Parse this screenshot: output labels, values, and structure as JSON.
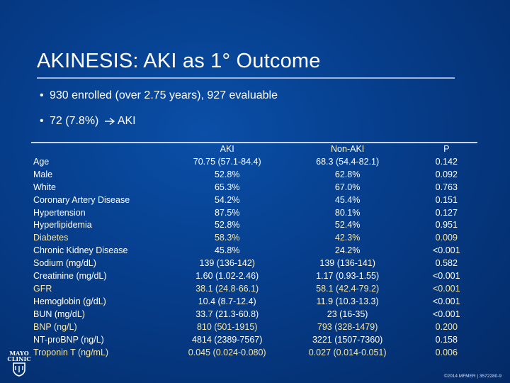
{
  "title": "AKINESIS: AKI as 1° Outcome",
  "bullets": [
    {
      "text_before": "930 enrolled (over 2.75 years), 927 evaluable"
    },
    {
      "text_before": "72 (7.8%)",
      "text_after": "AKI",
      "arrow": "right-arrow-icon"
    }
  ],
  "table": {
    "headers": [
      "",
      "AKI",
      "Non-AKI",
      "P"
    ],
    "rows": [
      {
        "label": "Age",
        "aki": "70.75 (57.1-84.4)",
        "nonaki": "68.3 (54.4-82.1)",
        "p": "0.142",
        "highlight": false
      },
      {
        "label": "Male",
        "aki": "52.8%",
        "nonaki": "62.8%",
        "p": "0.092",
        "highlight": false
      },
      {
        "label": "White",
        "aki": "65.3%",
        "nonaki": "67.0%",
        "p": "0.763",
        "highlight": false
      },
      {
        "label": "Coronary Artery Disease",
        "aki": "54.2%",
        "nonaki": "45.4%",
        "p": "0.151",
        "highlight": false
      },
      {
        "label": "Hypertension",
        "aki": "87.5%",
        "nonaki": "80.1%",
        "p": "0.127",
        "highlight": false
      },
      {
        "label": "Hyperlipidemia",
        "aki": "52.8%",
        "nonaki": "52.4%",
        "p": "0.951",
        "highlight": false
      },
      {
        "label": "Diabetes",
        "aki": "58.3%",
        "nonaki": "42.3%",
        "p": "0.009",
        "highlight": true
      },
      {
        "label": "Chronic Kidney Disease",
        "aki": "45.8%",
        "nonaki": "24.2%",
        "p": "<0.001",
        "highlight": false
      },
      {
        "label": "Sodium (mg/dL)",
        "aki": "139 (136-142)",
        "nonaki": "139 (136-141)",
        "p": "0.582",
        "highlight": false
      },
      {
        "label": "Creatinine (mg/dL)",
        "aki": "1.60 (1.02-2.46)",
        "nonaki": "1.17 (0.93-1.55)",
        "p": "<0.001",
        "highlight": false
      },
      {
        "label": "GFR",
        "aki": "38.1 (24.8-66.1)",
        "nonaki": "58.1 (42.4-79.2)",
        "p": "<0.001",
        "highlight": true
      },
      {
        "label": "Hemoglobin (g/dL)",
        "aki": "10.4 (8.7-12.4)",
        "nonaki": "11.9 (10.3-13.3)",
        "p": "<0.001",
        "highlight": false
      },
      {
        "label": "BUN (mg/dL)",
        "aki": "33.7 (21.3-60.8)",
        "nonaki": "23 (16-35)",
        "p": "<0.001",
        "highlight": false
      },
      {
        "label": "BNP (ng/L)",
        "aki": "810 (501-1915)",
        "nonaki": "793 (328-1479)",
        "p": "0.200",
        "highlight": true
      },
      {
        "label": "NT-proBNP (ng/L)",
        "aki": "4814 (2389-7567)",
        "nonaki": "3221 (1507-7360)",
        "p": "0.158",
        "highlight": false
      },
      {
        "label": "Troponin T (ng/mL)",
        "aki": "0.045 (0.024-0.080)",
        "nonaki": "0.027 (0.014-0.051)",
        "p": "0.006",
        "highlight": true
      }
    ]
  },
  "logo": {
    "line1": "MAYO",
    "line2": "CLINIC"
  },
  "footer": "©2014 MFMER | 3572280-9",
  "colors": {
    "background": "#063d8a",
    "highlight_text": "#f5e6a8",
    "rule": "#9fb4d6"
  }
}
